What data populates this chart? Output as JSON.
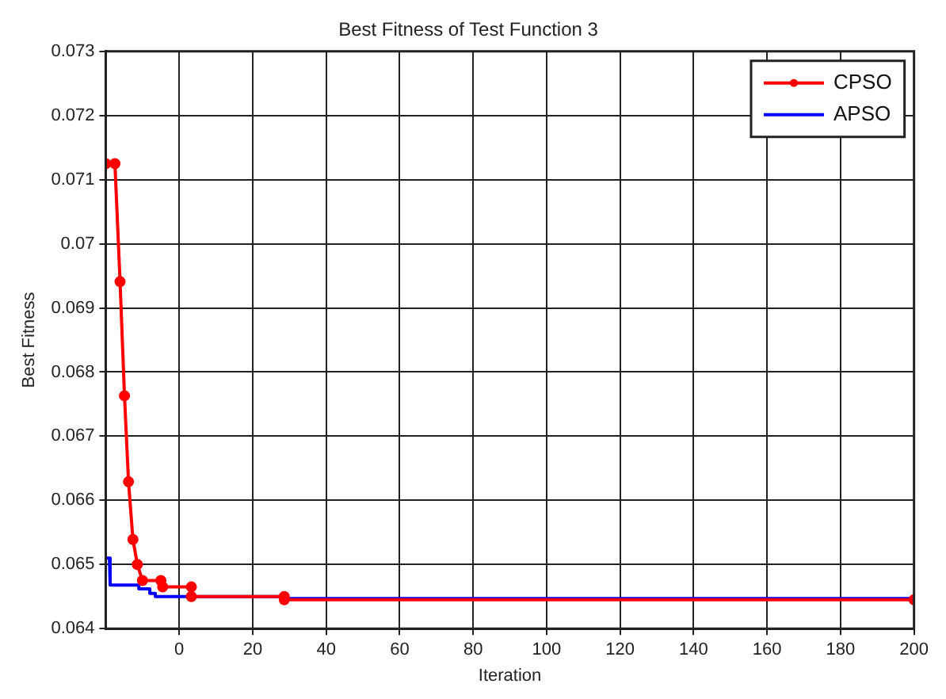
{
  "chart_data": {
    "type": "line",
    "title": "Best Fitness of Test Function 3",
    "xlabel": "Iteration",
    "ylabel": "Best Fitness",
    "xlim": [
      -20,
      200
    ],
    "ylim": [
      0.064,
      0.073
    ],
    "xticks": [
      0,
      20,
      40,
      60,
      80,
      100,
      120,
      140,
      160,
      180,
      200
    ],
    "yticks": [
      0.064,
      0.065,
      0.066,
      0.067,
      0.068,
      0.069,
      0.07,
      0.071,
      0.072,
      0.073
    ],
    "grid": true,
    "legend": "top right",
    "line_style": "solid",
    "series": [
      {
        "name": "CPSO",
        "color": "#ff0000",
        "marker": "circle",
        "x": [
          -20,
          -17.5,
          -16.1,
          -14.9,
          -13.8,
          -12.6,
          -11.4,
          -10,
          -5,
          -4.5,
          3.3,
          3.3,
          28.6,
          28.6,
          200
        ],
        "values": [
          0.07125,
          0.07125,
          0.06941,
          0.06763,
          0.06629,
          0.06539,
          0.065,
          0.06475,
          0.06475,
          0.06465,
          0.06465,
          0.0645,
          0.0645,
          0.06445,
          0.06445
        ]
      },
      {
        "name": "APSO",
        "color": "#0000ff",
        "marker": "none",
        "x": [
          -20,
          -19,
          -18.8,
          -11,
          -11,
          -8,
          -8,
          -6.5,
          -6.5,
          28.6,
          28.6,
          200
        ],
        "values": [
          0.0651,
          0.0651,
          0.06468,
          0.06468,
          0.06462,
          0.06462,
          0.06455,
          0.06455,
          0.0645,
          0.0645,
          0.06447,
          0.06447
        ]
      }
    ]
  }
}
